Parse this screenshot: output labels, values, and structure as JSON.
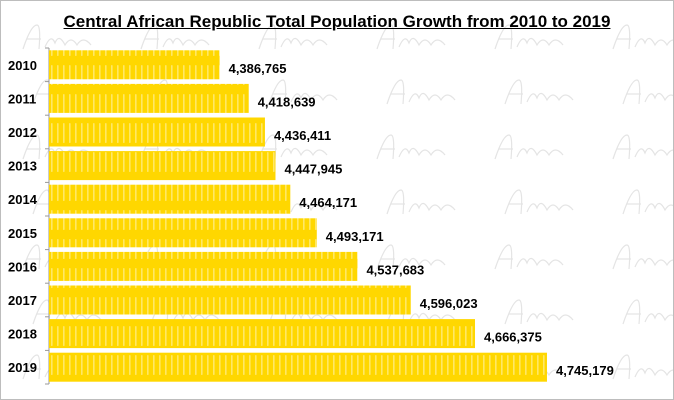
{
  "chart_data": {
    "type": "bar",
    "orientation": "horizontal",
    "title": "Central African Republic Total Population Growth from 2010 to 2019",
    "categories": [
      "2010",
      "2011",
      "2012",
      "2013",
      "2014",
      "2015",
      "2016",
      "2017",
      "2018",
      "2019"
    ],
    "values": [
      4386765,
      4418639,
      4436411,
      4447945,
      4464171,
      4493171,
      4537683,
      4596023,
      4666375,
      4745179
    ],
    "value_labels": [
      "4,386,765",
      "4,418,639",
      "4,436,411",
      "4,447,945",
      "4,464,171",
      "4,493,171",
      "4,537,683",
      "4,596,023",
      "4,666,375",
      "4,745,179"
    ],
    "xlim": [
      4200000,
      4870000
    ],
    "grid": false,
    "legend": "none",
    "bar_color": "#FFD700",
    "watermark": "Afroluent"
  }
}
